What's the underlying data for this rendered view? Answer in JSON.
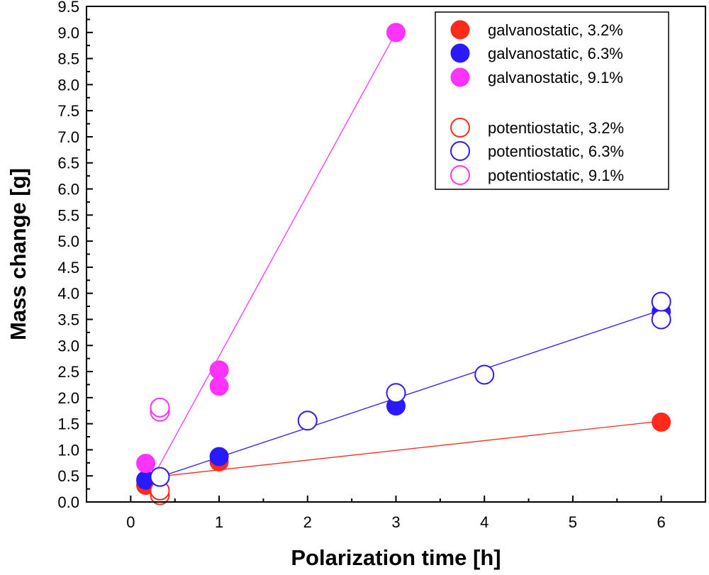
{
  "chart_data": {
    "type": "scatter",
    "xlabel": "Polarization time [h]",
    "ylabel": "Mass change [g]",
    "xlim": [
      -0.5,
      6.5
    ],
    "ylim": [
      0,
      9.5
    ],
    "x_ticks": [
      0,
      1,
      2,
      3,
      4,
      5,
      6
    ],
    "y_ticks": [
      0.0,
      0.5,
      1.0,
      1.5,
      2.0,
      2.5,
      3.0,
      3.5,
      4.0,
      4.5,
      5.0,
      5.5,
      6.0,
      6.5,
      7.0,
      7.5,
      8.0,
      8.5,
      9.0,
      9.5
    ],
    "grid": false,
    "legend_position": "top-right",
    "series": [
      {
        "name": "galvanostatic, 3.2%",
        "color": "#ff2a1a",
        "marker": "filled",
        "points": [
          [
            0.17,
            0.32
          ],
          [
            1,
            0.77
          ],
          [
            6,
            1.53
          ]
        ]
      },
      {
        "name": "galvanostatic, 6.3%",
        "color": "#2a1aff",
        "marker": "filled",
        "points": [
          [
            0.17,
            0.42
          ],
          [
            1,
            0.87
          ],
          [
            3,
            1.84
          ],
          [
            6,
            3.65
          ]
        ]
      },
      {
        "name": "galvanostatic, 9.1%",
        "color": "#ff33ff",
        "marker": "filled",
        "points": [
          [
            0.17,
            0.74
          ],
          [
            1,
            2.22
          ],
          [
            1,
            2.53
          ],
          [
            3,
            9.0
          ]
        ]
      },
      {
        "name": "potentiostatic, 3.2%",
        "color": "#ff2a1a",
        "marker": "open",
        "points": [
          [
            0.33,
            0.13
          ],
          [
            0.33,
            0.22
          ]
        ]
      },
      {
        "name": "potentiostatic, 6.3%",
        "color": "#2a1aff",
        "marker": "open",
        "points": [
          [
            0.33,
            0.48
          ],
          [
            2,
            1.56
          ],
          [
            3,
            2.09
          ],
          [
            4,
            2.44
          ],
          [
            6,
            3.5
          ],
          [
            6,
            3.84
          ]
        ]
      },
      {
        "name": "potentiostatic, 9.1%",
        "color": "#ff33ff",
        "marker": "open",
        "points": [
          [
            0.33,
            1.73
          ],
          [
            0.33,
            1.81
          ]
        ]
      }
    ],
    "fit_lines": [
      {
        "color": "#ff2a1a",
        "from": [
          0.17,
          0.46
        ],
        "to": [
          6,
          1.55
        ]
      },
      {
        "color": "#2a1aff",
        "from": [
          0.17,
          0.39
        ],
        "to": [
          6,
          3.68
        ]
      },
      {
        "color": "#ff33ff",
        "from": [
          0.17,
          0.22
        ],
        "to": [
          3,
          9.0
        ]
      }
    ]
  }
}
